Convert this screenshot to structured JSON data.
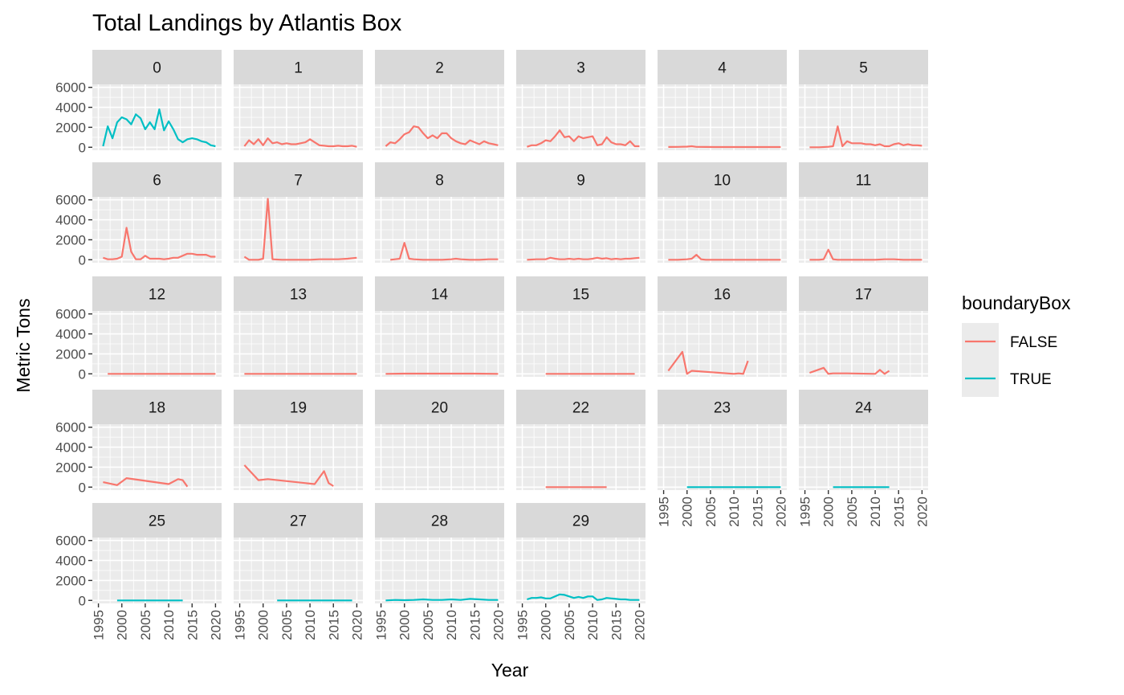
{
  "chart_data": {
    "type": "line",
    "title": "Total Landings by Atlantis Box",
    "xlabel": "Year",
    "ylabel": "Metric Tons",
    "xlim": [
      1995,
      2020
    ],
    "ylim": [
      0,
      6000
    ],
    "x_ticks": [
      1995,
      2000,
      2005,
      2010,
      2015,
      2020
    ],
    "y_ticks": [
      0,
      2000,
      4000,
      6000
    ],
    "grid": true,
    "legend": {
      "title": "boundaryBox",
      "placement": "right",
      "entries": [
        {
          "label": "FALSE",
          "color": "#F8766D"
        },
        {
          "label": "TRUE",
          "color": "#00BFC4"
        }
      ]
    },
    "panels": [
      {
        "label": "0",
        "series": "TRUE",
        "x": [
          1996,
          1997,
          1998,
          1999,
          2000,
          2001,
          2002,
          2003,
          2004,
          2005,
          2006,
          2007,
          2008,
          2009,
          2010,
          2011,
          2012,
          2013,
          2014,
          2015,
          2016,
          2017,
          2018,
          2019,
          2020
        ],
        "values": [
          100,
          2100,
          900,
          2500,
          3000,
          2800,
          2300,
          3300,
          2900,
          1800,
          2500,
          1800,
          3800,
          1700,
          2600,
          1800,
          800,
          500,
          800,
          900,
          800,
          600,
          500,
          200,
          100
        ]
      },
      {
        "label": "1",
        "series": "FALSE",
        "x": [
          1996,
          1997,
          1998,
          1999,
          2000,
          2001,
          2002,
          2003,
          2004,
          2005,
          2006,
          2007,
          2008,
          2009,
          2010,
          2011,
          2012,
          2013,
          2014,
          2015,
          2016,
          2017,
          2018,
          2019,
          2020
        ],
        "values": [
          100,
          700,
          300,
          800,
          200,
          900,
          400,
          500,
          300,
          400,
          300,
          300,
          400,
          500,
          800,
          500,
          200,
          150,
          100,
          100,
          150,
          100,
          100,
          150,
          50
        ]
      },
      {
        "label": "2",
        "series": "FALSE",
        "x": [
          1996,
          1997,
          1998,
          1999,
          2000,
          2001,
          2002,
          2003,
          2004,
          2005,
          2006,
          2007,
          2008,
          2009,
          2010,
          2011,
          2012,
          2013,
          2014,
          2015,
          2016,
          2017,
          2018,
          2019,
          2020
        ],
        "values": [
          100,
          500,
          400,
          800,
          1300,
          1500,
          2100,
          2000,
          1400,
          900,
          1200,
          900,
          1400,
          1400,
          900,
          600,
          400,
          300,
          700,
          500,
          300,
          600,
          400,
          300,
          200
        ]
      },
      {
        "label": "3",
        "series": "FALSE",
        "x": [
          1996,
          1997,
          1998,
          1999,
          2000,
          2001,
          2002,
          2003,
          2004,
          2005,
          2006,
          2007,
          2008,
          2009,
          2010,
          2011,
          2012,
          2013,
          2014,
          2015,
          2016,
          2017,
          2018,
          2019,
          2020
        ],
        "values": [
          50,
          200,
          200,
          400,
          700,
          600,
          1100,
          1700,
          1000,
          1100,
          600,
          1100,
          900,
          1000,
          1100,
          200,
          300,
          1000,
          500,
          300,
          300,
          200,
          600,
          100,
          100
        ]
      },
      {
        "label": "4",
        "series": "FALSE",
        "x": [
          1996,
          1998,
          2000,
          2001,
          2002,
          2004,
          2006,
          2008,
          2010,
          2012,
          2014,
          2016,
          2018,
          2020
        ],
        "values": [
          30,
          40,
          60,
          100,
          40,
          30,
          20,
          20,
          20,
          20,
          20,
          20,
          20,
          20
        ]
      },
      {
        "label": "5",
        "series": "FALSE",
        "x": [
          1996,
          1998,
          2000,
          2001,
          2002,
          2003,
          2004,
          2005,
          2006,
          2007,
          2008,
          2009,
          2010,
          2011,
          2012,
          2013,
          2014,
          2015,
          2016,
          2017,
          2018,
          2019,
          2020
        ],
        "values": [
          0,
          0,
          50,
          100,
          2100,
          100,
          600,
          400,
          400,
          400,
          300,
          300,
          200,
          300,
          100,
          100,
          300,
          400,
          200,
          300,
          200,
          200,
          150
        ]
      },
      {
        "label": "6",
        "series": "FALSE",
        "x": [
          1996,
          1997,
          1998,
          1999,
          2000,
          2001,
          2002,
          2003,
          2004,
          2005,
          2006,
          2007,
          2008,
          2009,
          2010,
          2011,
          2012,
          2013,
          2014,
          2015,
          2016,
          2017,
          2018,
          2019,
          2020
        ],
        "values": [
          200,
          50,
          50,
          100,
          300,
          3200,
          800,
          50,
          50,
          400,
          100,
          100,
          100,
          50,
          100,
          200,
          200,
          400,
          600,
          600,
          500,
          500,
          500,
          300,
          300
        ]
      },
      {
        "label": "7",
        "series": "FALSE",
        "x": [
          1996,
          1997,
          1998,
          1999,
          2000,
          2001,
          2002,
          2004,
          2006,
          2008,
          2010,
          2012,
          2014,
          2016,
          2018,
          2020
        ],
        "values": [
          300,
          0,
          0,
          0,
          100,
          6100,
          50,
          0,
          0,
          0,
          0,
          50,
          50,
          50,
          100,
          200
        ]
      },
      {
        "label": "8",
        "series": "FALSE",
        "x": [
          1997,
          1998,
          1999,
          2000,
          2001,
          2002,
          2004,
          2006,
          2008,
          2010,
          2011,
          2012,
          2014,
          2016,
          2018,
          2020
        ],
        "values": [
          0,
          50,
          100,
          1700,
          100,
          50,
          0,
          0,
          0,
          50,
          100,
          50,
          0,
          0,
          50,
          50
        ]
      },
      {
        "label": "9",
        "series": "FALSE",
        "x": [
          1996,
          1998,
          2000,
          2001,
          2002,
          2003,
          2004,
          2005,
          2006,
          2007,
          2008,
          2009,
          2010,
          2011,
          2012,
          2013,
          2014,
          2015,
          2016,
          2017,
          2018,
          2019,
          2020
        ],
        "values": [
          0,
          50,
          50,
          200,
          100,
          50,
          50,
          100,
          50,
          100,
          50,
          50,
          100,
          200,
          100,
          150,
          50,
          100,
          50,
          100,
          100,
          150,
          200
        ]
      },
      {
        "label": "10",
        "series": "FALSE",
        "x": [
          1996,
          1998,
          2000,
          2001,
          2002,
          2003,
          2004,
          2006,
          2008,
          2010,
          2012,
          2014,
          2016,
          2018,
          2020
        ],
        "values": [
          0,
          0,
          50,
          100,
          500,
          50,
          0,
          0,
          0,
          0,
          0,
          0,
          0,
          0,
          0
        ]
      },
      {
        "label": "11",
        "series": "FALSE",
        "x": [
          1996,
          1998,
          1999,
          2000,
          2001,
          2002,
          2004,
          2006,
          2008,
          2010,
          2012,
          2014,
          2016,
          2018,
          2020
        ],
        "values": [
          0,
          0,
          50,
          1000,
          50,
          0,
          0,
          0,
          0,
          0,
          50,
          50,
          0,
          0,
          0
        ]
      },
      {
        "label": "12",
        "series": "FALSE",
        "x": [
          1997,
          2000,
          2005,
          2010,
          2015,
          2020
        ],
        "values": [
          0,
          0,
          0,
          0,
          0,
          0
        ]
      },
      {
        "label": "13",
        "series": "FALSE",
        "x": [
          1996,
          2000,
          2005,
          2010,
          2015,
          2020
        ],
        "values": [
          0,
          0,
          0,
          0,
          0,
          0
        ]
      },
      {
        "label": "14",
        "series": "FALSE",
        "x": [
          1996,
          2000,
          2005,
          2010,
          2015,
          2020
        ],
        "values": [
          0,
          20,
          20,
          20,
          20,
          0
        ]
      },
      {
        "label": "15",
        "series": "FALSE",
        "x": [
          2000,
          2005,
          2010,
          2015,
          2019
        ],
        "values": [
          0,
          0,
          0,
          0,
          0
        ]
      },
      {
        "label": "16",
        "series": "FALSE",
        "x": [
          1996,
          1999,
          2000,
          2001,
          2010,
          2011,
          2012,
          2013
        ],
        "values": [
          300,
          2200,
          0,
          300,
          0,
          50,
          0,
          1300
        ]
      },
      {
        "label": "17",
        "series": "FALSE",
        "x": [
          1996,
          1999,
          2000,
          2001,
          2004,
          2010,
          2011,
          2012,
          2013
        ],
        "values": [
          100,
          600,
          0,
          50,
          50,
          0,
          400,
          0,
          300
        ]
      },
      {
        "label": "18",
        "series": "FALSE",
        "x": [
          1996,
          1999,
          2001,
          2010,
          2012,
          2013,
          2014
        ],
        "values": [
          500,
          200,
          900,
          300,
          800,
          700,
          50
        ]
      },
      {
        "label": "19",
        "series": "FALSE",
        "x": [
          1996,
          1999,
          2001,
          2011,
          2013,
          2014,
          2015
        ],
        "values": [
          2200,
          700,
          800,
          300,
          1600,
          400,
          100
        ]
      },
      {
        "label": "20",
        "series": "FALSE",
        "x": [],
        "values": []
      },
      {
        "label": "22",
        "series": "FALSE",
        "x": [
          2000,
          2005,
          2010,
          2013
        ],
        "values": [
          0,
          0,
          0,
          0
        ]
      },
      {
        "label": "23",
        "series": "TRUE",
        "x": [
          2000,
          2005,
          2010,
          2015,
          2020
        ],
        "values": [
          0,
          0,
          0,
          0,
          0
        ]
      },
      {
        "label": "24",
        "series": "TRUE",
        "x": [
          2001,
          2005,
          2010,
          2013
        ],
        "values": [
          0,
          0,
          0,
          0
        ]
      },
      {
        "label": "25",
        "series": "TRUE",
        "x": [
          1999,
          2005,
          2010,
          2013
        ],
        "values": [
          0,
          0,
          0,
          0
        ]
      },
      {
        "label": "27",
        "series": "TRUE",
        "x": [
          2003,
          2005,
          2010,
          2015,
          2019
        ],
        "values": [
          0,
          0,
          0,
          0,
          0
        ]
      },
      {
        "label": "28",
        "series": "TRUE",
        "x": [
          1996,
          1998,
          2000,
          2002,
          2004,
          2006,
          2008,
          2010,
          2012,
          2014,
          2016,
          2018,
          2020
        ],
        "values": [
          0,
          50,
          20,
          50,
          100,
          50,
          50,
          100,
          50,
          150,
          100,
          50,
          50
        ]
      },
      {
        "label": "29",
        "series": "TRUE",
        "x": [
          1996,
          1997,
          1998,
          1999,
          2000,
          2001,
          2002,
          2003,
          2004,
          2005,
          2006,
          2007,
          2008,
          2009,
          2010,
          2011,
          2012,
          2013,
          2014,
          2015,
          2016,
          2017,
          2018,
          2019,
          2020
        ],
        "values": [
          100,
          250,
          250,
          300,
          200,
          200,
          400,
          600,
          550,
          400,
          250,
          350,
          250,
          400,
          400,
          50,
          100,
          250,
          200,
          150,
          100,
          100,
          50,
          50,
          50
        ]
      }
    ]
  }
}
